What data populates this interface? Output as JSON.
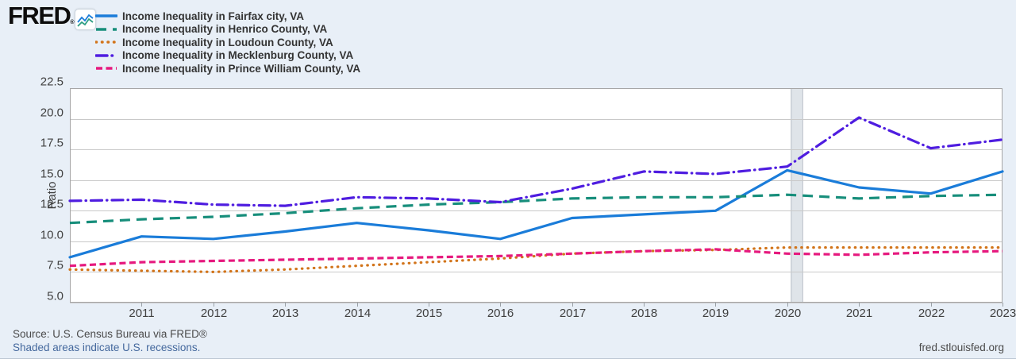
{
  "branding": {
    "logo": "FRED",
    "registered_mark": "®"
  },
  "footer": {
    "source": "Source: U.S. Census Bureau via FRED®",
    "recession_note": "Shaded areas indicate U.S. recessions.",
    "site": "fred.stlouisfed.org"
  },
  "chart_data": {
    "type": "line",
    "title": "",
    "xlabel": "",
    "ylabel": "Ratio",
    "xlim": [
      2010,
      2023
    ],
    "ylim": [
      5.0,
      22.5
    ],
    "yticks": [
      5.0,
      7.5,
      10.0,
      12.5,
      15.0,
      17.5,
      20.0,
      22.5
    ],
    "xticks": [
      2011,
      2012,
      2013,
      2014,
      2015,
      2016,
      2017,
      2018,
      2019,
      2020,
      2021,
      2022,
      2023
    ],
    "grid": "horizontal",
    "legend_position": "top-left",
    "x": [
      2010,
      2011,
      2012,
      2013,
      2014,
      2015,
      2016,
      2017,
      2018,
      2019,
      2020,
      2021,
      2022,
      2023
    ],
    "series": [
      {
        "name": "Income Inequality in Fairfax city, VA",
        "color": "#1a7cd9",
        "line_style": "solid",
        "values": [
          8.7,
          10.4,
          10.2,
          10.8,
          11.5,
          10.9,
          10.2,
          11.9,
          12.2,
          12.5,
          15.8,
          14.4,
          13.9,
          15.7
        ]
      },
      {
        "name": "Income Inequality in Henrico County, VA",
        "color": "#178e7b",
        "line_style": "long-dash",
        "values": [
          11.5,
          11.8,
          12.0,
          12.3,
          12.7,
          13.0,
          13.2,
          13.5,
          13.6,
          13.6,
          13.8,
          13.5,
          13.7,
          13.8
        ]
      },
      {
        "name": "Income Inequality in Loudoun County, VA",
        "color": "#d2741a",
        "line_style": "dotted",
        "values": [
          7.7,
          7.6,
          7.5,
          7.7,
          8.0,
          8.3,
          8.6,
          9.0,
          9.2,
          9.3,
          9.5,
          9.5,
          9.5,
          9.5
        ]
      },
      {
        "name": "Income Inequality in Mecklenburg County, VA",
        "color": "#4f1de0",
        "line_style": "dash-dot",
        "values": [
          13.3,
          13.4,
          13.0,
          12.9,
          13.6,
          13.5,
          13.2,
          14.3,
          15.7,
          15.5,
          16.1,
          20.1,
          17.6,
          18.3
        ]
      },
      {
        "name": "Income Inequality in Prince William County, VA",
        "color": "#e6197e",
        "line_style": "dash",
        "values": [
          8.0,
          8.3,
          8.4,
          8.5,
          8.6,
          8.7,
          8.8,
          9.0,
          9.2,
          9.35,
          9.0,
          8.9,
          9.1,
          9.2
        ]
      }
    ],
    "recessions": [
      {
        "start": 2020.05,
        "end": 2020.21
      }
    ]
  }
}
